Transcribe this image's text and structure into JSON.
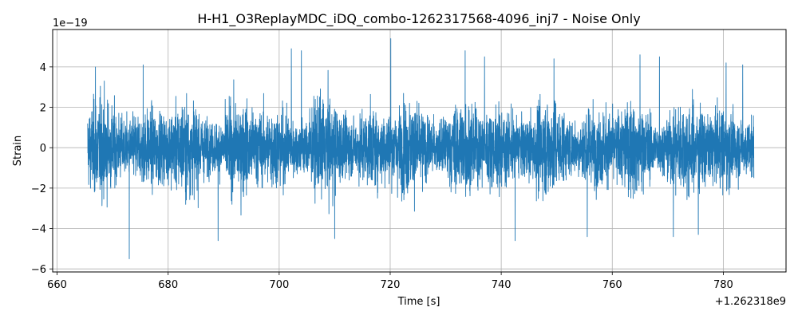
{
  "chart_data": {
    "type": "line",
    "title": "H-H1_O3ReplayMDC_iDQ_combo-1262317568-4096_inj7 - Noise Only",
    "xlabel": "Time [s]",
    "ylabel": "Strain",
    "x_offset_label": "+1.262318e9",
    "y_scale_label": "1e−19",
    "xlim": [
      659.2,
      791.3
    ],
    "ylim": [
      -6.15,
      5.85
    ],
    "x_ticks": [
      660,
      680,
      700,
      720,
      740,
      760,
      780
    ],
    "x_tick_labels": [
      "660",
      "680",
      "700",
      "720",
      "740",
      "760",
      "780"
    ],
    "y_ticks": [
      -6,
      -4,
      -2,
      0,
      2,
      4
    ],
    "y_tick_labels": [
      "−6",
      "−4",
      "−2",
      "0",
      "2",
      "4"
    ],
    "grid": true,
    "series": [
      {
        "color": "#1f77b4",
        "x_range": [
          665.5,
          785.5
        ],
        "noise_sigma": 0.9,
        "peaks": [
          {
            "x": 666.9,
            "y": 4.0
          },
          {
            "x": 673.0,
            "y": -5.5
          },
          {
            "x": 675.5,
            "y": 4.1
          },
          {
            "x": 689.0,
            "y": -4.6
          },
          {
            "x": 702.2,
            "y": 4.9
          },
          {
            "x": 704.0,
            "y": 4.8
          },
          {
            "x": 710.0,
            "y": -4.5
          },
          {
            "x": 720.1,
            "y": 5.4
          },
          {
            "x": 733.5,
            "y": 4.8
          },
          {
            "x": 737.0,
            "y": 4.5
          },
          {
            "x": 742.5,
            "y": -4.6
          },
          {
            "x": 749.5,
            "y": 4.4
          },
          {
            "x": 755.5,
            "y": -4.4
          },
          {
            "x": 765.0,
            "y": 4.6
          },
          {
            "x": 768.5,
            "y": 4.5
          },
          {
            "x": 771.0,
            "y": -4.4
          },
          {
            "x": 775.5,
            "y": -4.3
          },
          {
            "x": 780.5,
            "y": 4.2
          },
          {
            "x": 783.5,
            "y": 4.1
          }
        ]
      }
    ]
  }
}
